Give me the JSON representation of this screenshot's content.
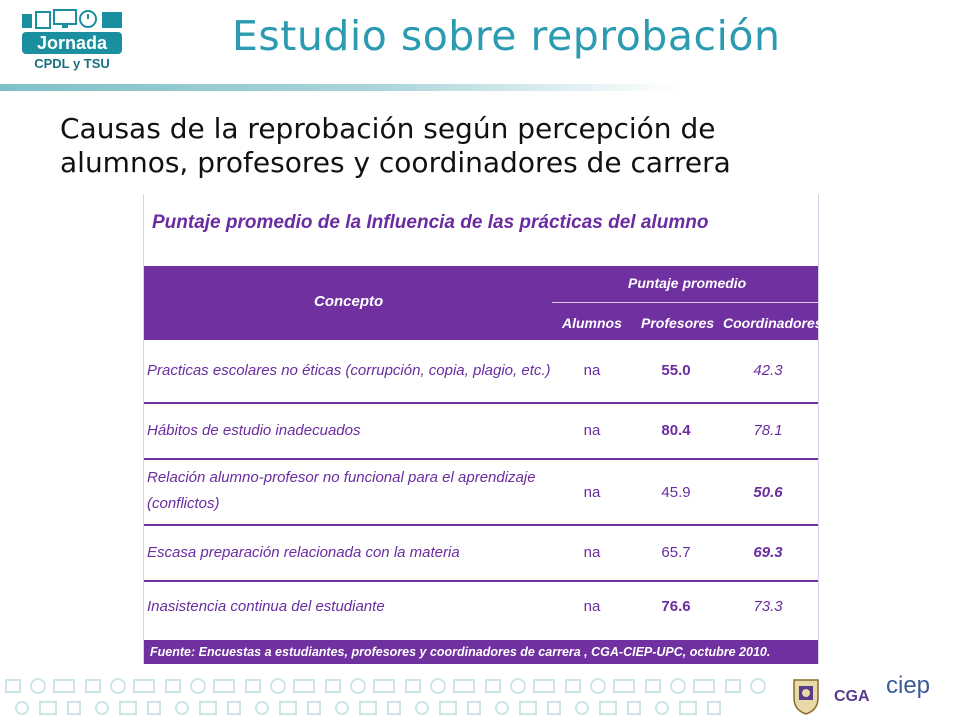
{
  "logo": {
    "word": "Jornada",
    "sub": "CPDL y TSU"
  },
  "slide_title": "Estudio sobre reprobación",
  "subtitle": {
    "line1": "Causas de la reprobación según percepción de",
    "line2": "alumnos, profesores y coordinadores de carrera"
  },
  "table": {
    "heading": "Puntaje promedio de la  Influencia de las prácticas del alumno",
    "col_concepto": "Concepto",
    "col_group": "Puntaje promedio",
    "col_alumnos": "Alumnos",
    "col_profesores": "Profesores",
    "col_coordinadores": "Coordinadores",
    "rows": [
      {
        "concepto": "Practicas escolares no éticas (corrupción, copia, plagio, etc.)",
        "alumnos": "na",
        "profesores": "55.0",
        "coordinadores": "42.3"
      },
      {
        "concepto": "Hábitos de estudio inadecuados",
        "alumnos": "na",
        "profesores": "80.4",
        "coordinadores": "78.1"
      },
      {
        "concepto": "Relación alumno-profesor no funcional para el aprendizaje (conflictos)",
        "alumnos": "na",
        "profesores": "45.9",
        "coordinadores": "50.6"
      },
      {
        "concepto": "Escasa preparación relacionada con la materia",
        "alumnos": "na",
        "profesores": "65.7",
        "coordinadores": "69.3"
      },
      {
        "concepto": "Inasistencia continua del estudiante",
        "alumnos": "na",
        "profesores": "76.6",
        "coordinadores": "73.3"
      }
    ],
    "footer": "Fuente:  Encuestas a estudiantes, profesores y coordinadores de carrera , CGA-CIEP-UPC, octubre 2010."
  },
  "bottom_logos": {
    "cga": "CGA",
    "ciep": "ciep"
  },
  "colors": {
    "title": "#2a9bb0",
    "purple": "#7030a0",
    "purple_text": "#6a2ca0"
  }
}
